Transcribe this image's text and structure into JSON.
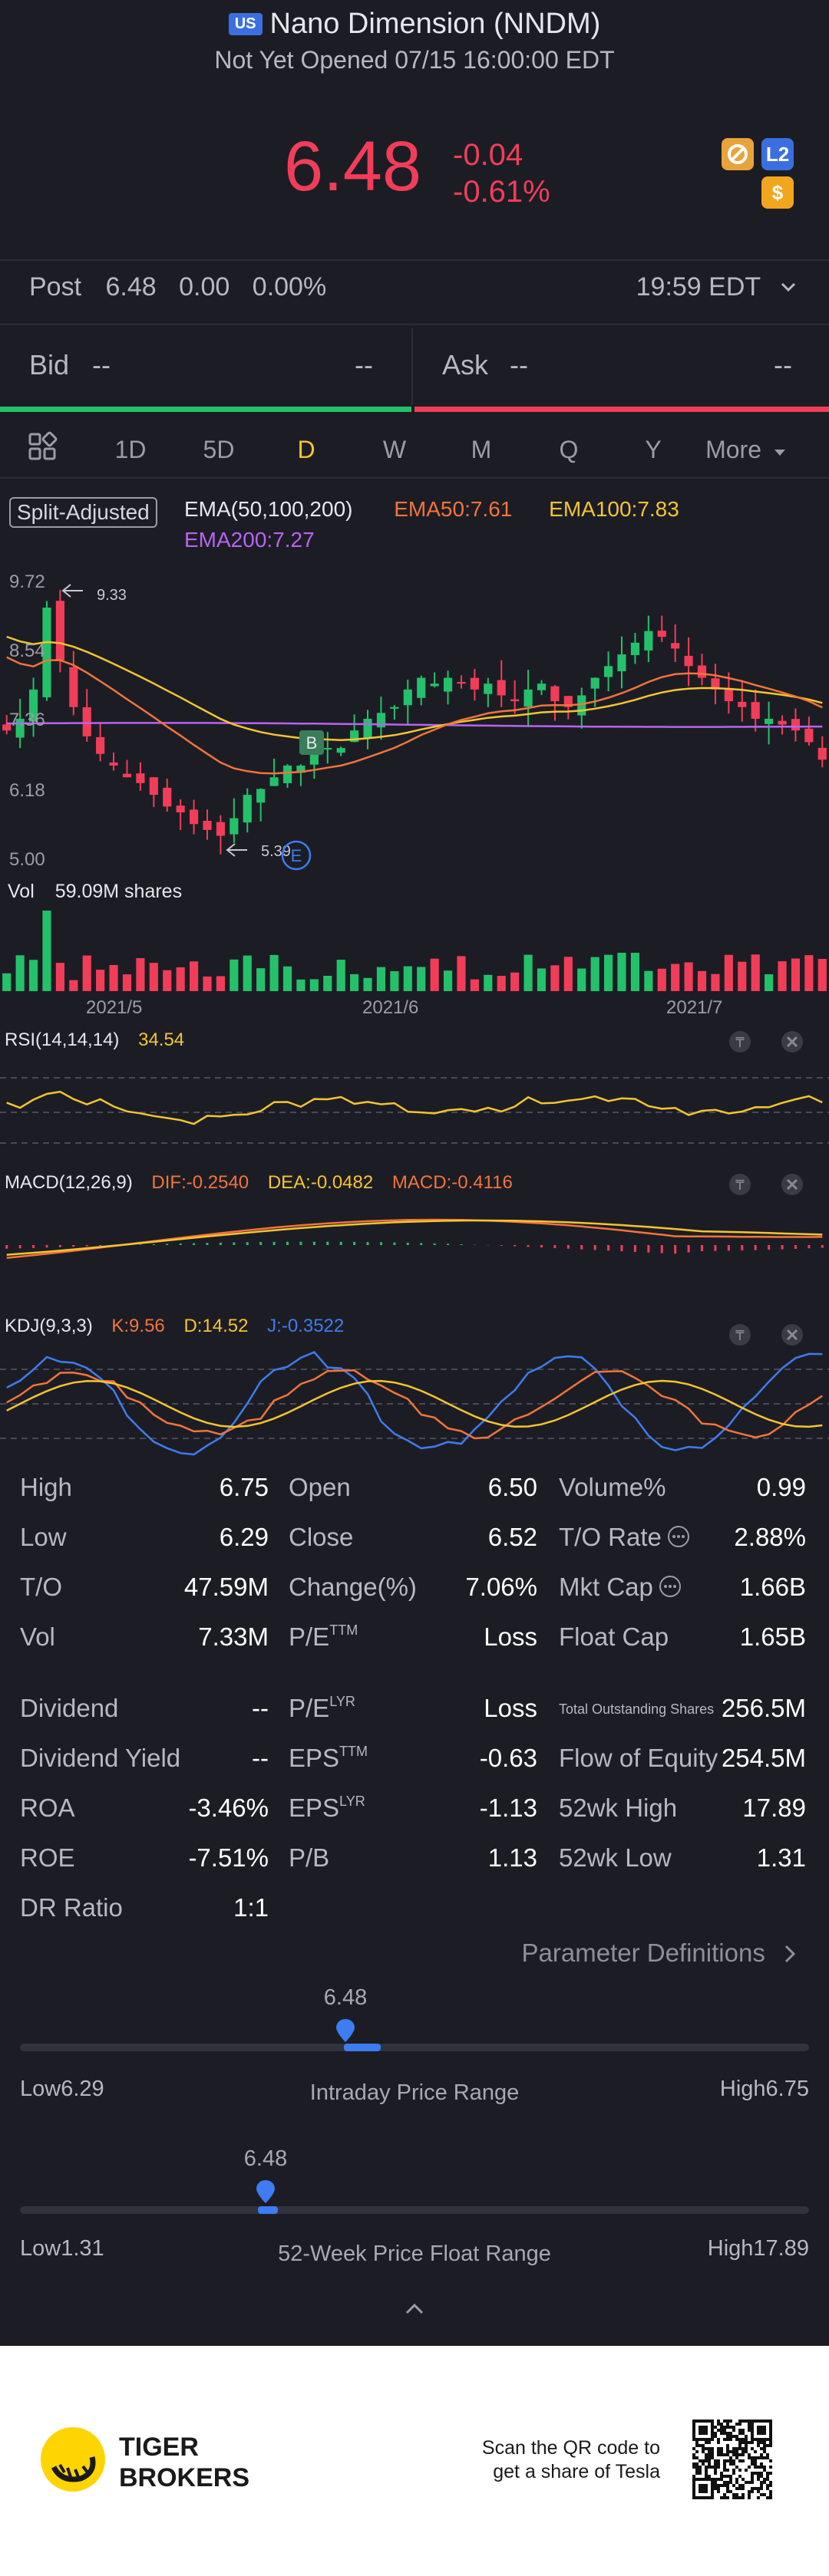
{
  "header": {
    "market_badge": "US",
    "title": "Nano Dimension (NNDM)",
    "status": "Not Yet Opened 07/15 16:00:00 EDT",
    "price": "6.48",
    "change": "-0.04",
    "change_pct": "-0.61%",
    "icons": [
      "no-trade-icon",
      "level2-icon",
      "dollar-icon"
    ],
    "level2_label": "L2",
    "dollar_label": "$"
  },
  "post": {
    "label": "Post",
    "price": "6.48",
    "change": "0.00",
    "change_pct": "0.00%",
    "time": "19:59 EDT"
  },
  "quote": {
    "bid_label": "Bid",
    "bid_value": "--",
    "bid_size": "--",
    "ask_label": "Ask",
    "ask_value": "--",
    "ask_size": "--"
  },
  "tabs": [
    "1D",
    "5D",
    "D",
    "W",
    "M",
    "Q",
    "Y",
    "More"
  ],
  "active_tab": "D",
  "ema": {
    "split_label": "Split-Adjusted",
    "title": "EMA(50,100,200)",
    "ema50": "EMA50:7.61",
    "ema100": "EMA100:7.83",
    "ema200": "EMA200:7.27"
  },
  "price_axis": [
    "9.72",
    "8.54",
    "7.36",
    "6.18",
    "5.00"
  ],
  "annotations": {
    "high_marker": "9.33",
    "low_marker": "5.39",
    "buy_marker": "B",
    "earnings_marker": "E"
  },
  "volume": {
    "label": "Vol",
    "value": "59.09M shares"
  },
  "date_axis": [
    "2021/5",
    "2021/6",
    "2021/7"
  ],
  "rsi": {
    "label": "RSI(14,14,14)",
    "value": "34.54"
  },
  "macd": {
    "label": "MACD(12,26,9)",
    "dif": "DIF:-0.2540",
    "dea": "DEA:-0.0482",
    "macd": "MACD:-0.4116"
  },
  "kdj": {
    "label": "KDJ(9,3,3)",
    "k": "K:9.56",
    "d": "D:14.52",
    "j": "J:-0.3522"
  },
  "stats": {
    "col1": [
      {
        "label": "High",
        "value": "6.75"
      },
      {
        "label": "Low",
        "value": "6.29"
      },
      {
        "label": "T/O",
        "value": "47.59M"
      },
      {
        "label": "Vol",
        "value": "7.33M"
      }
    ],
    "col2": [
      {
        "label": "Open",
        "value": "6.50"
      },
      {
        "label": "Close",
        "value": "6.52"
      },
      {
        "label": "Change(%)",
        "value": "7.06%"
      },
      {
        "label": "P/E",
        "sup": "TTM",
        "value": "Loss"
      }
    ],
    "col3": [
      {
        "label": "Volume%",
        "value": "0.99"
      },
      {
        "label": "T/O Rate",
        "value": "2.88%"
      },
      {
        "label": "Mkt Cap",
        "value": "1.66B"
      },
      {
        "label": "Float Cap",
        "value": "1.65B"
      }
    ],
    "col1b": [
      {
        "label": "Dividend",
        "value": "--"
      },
      {
        "label": "Dividend Yield",
        "value": "--"
      },
      {
        "label": "ROA",
        "value": "-3.46%"
      },
      {
        "label": "ROE",
        "value": "-7.51%"
      },
      {
        "label": "DR Ratio",
        "value": "1:1"
      }
    ],
    "col2b": [
      {
        "label": "P/E",
        "sup": "LYR",
        "value": "Loss"
      },
      {
        "label": "EPS",
        "sup": "TTM",
        "value": "-0.63"
      },
      {
        "label": "EPS",
        "sup": "LYR",
        "value": "-1.13"
      },
      {
        "label": "P/B",
        "value": "1.13"
      }
    ],
    "col3b": [
      {
        "label": "Total Outstanding Shares",
        "value": "256.5M"
      },
      {
        "label": "Flow of Equity",
        "value": "254.5M"
      },
      {
        "label": "52wk High",
        "value": "17.89"
      },
      {
        "label": "52wk Low",
        "value": "1.31"
      }
    ]
  },
  "param_definitions": "Parameter Definitions",
  "intraday": {
    "marker": "6.48",
    "low": "Low6.29",
    "high": "High6.75",
    "title": "Intraday Price Range",
    "position": 0.41
  },
  "week52": {
    "marker": "6.48",
    "low": "Low1.31",
    "high": "High17.89",
    "title": "52-Week Price Float Range",
    "position": 0.31
  },
  "footer": {
    "brand_line1": "TIGER",
    "brand_line2": "BROKERS",
    "qr_text_line1": "Scan the QR code to",
    "qr_text_line2": "get a share of Tesla"
  },
  "colors": {
    "up": "#24c16b",
    "down": "#f23d59",
    "accent": "#f5c431",
    "ema50": "#f2743b",
    "ema100": "#f5c431",
    "ema200": "#b764f2"
  }
}
